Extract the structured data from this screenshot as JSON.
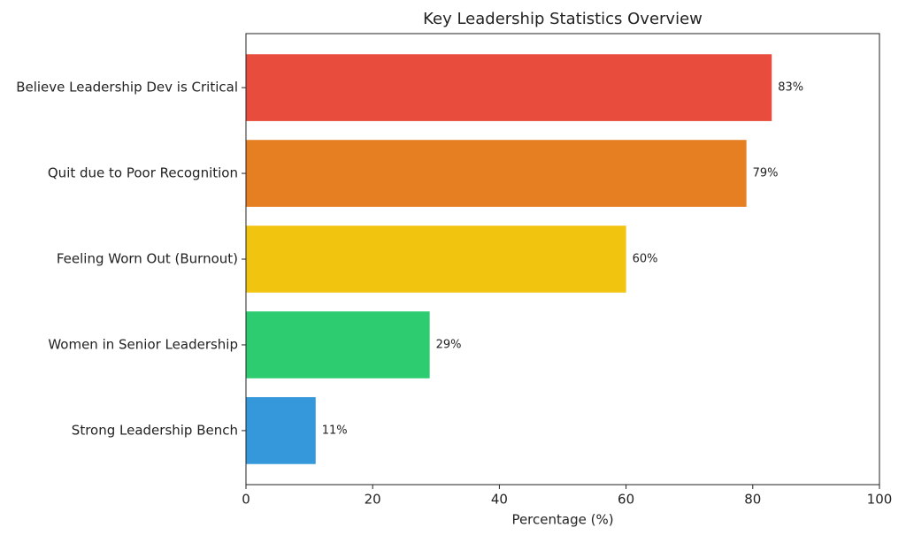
{
  "chart_data": {
    "type": "barh",
    "title": "Key Leadership Statistics Overview",
    "xlabel": "Percentage (%)",
    "categories": [
      "Believe Leadership Dev is Critical",
      "Quit due to Poor Recognition",
      "Feeling Worn Out (Burnout)",
      "Women in Senior Leadership",
      "Strong Leadership Bench"
    ],
    "values": [
      83,
      79,
      60,
      29,
      11
    ],
    "value_labels": [
      "83%",
      "79%",
      "60%",
      "29%",
      "11%"
    ],
    "colors": [
      "#e74c3c",
      "#e67e22",
      "#f1c40f",
      "#2ecc71",
      "#3498db"
    ],
    "xlim": [
      0,
      100
    ],
    "xticks": [
      0,
      20,
      40,
      60,
      80,
      100
    ],
    "grid": false
  }
}
